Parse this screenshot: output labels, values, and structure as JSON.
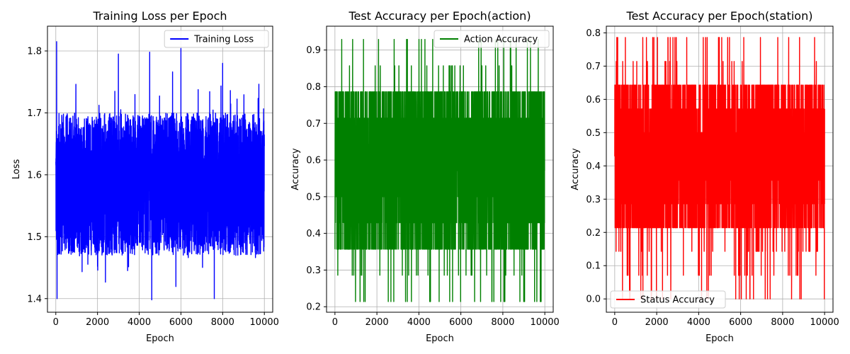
{
  "chart_data": [
    {
      "type": "line",
      "title": "Training Loss per Epoch",
      "xlabel": "Epoch",
      "ylabel": "Loss",
      "xlim": [
        -400,
        10400
      ],
      "ylim": [
        1.378,
        1.84
      ],
      "xticks": [
        0,
        2000,
        4000,
        6000,
        8000,
        10000
      ],
      "yticks": [
        1.4,
        1.5,
        1.6,
        1.7,
        1.8
      ],
      "grid": true,
      "legend_position": "top-right",
      "series": [
        {
          "name": "Training Loss",
          "color": "#0000ff",
          "epochs": [
            0,
            10000
          ],
          "band": [
            1.47,
            1.7
          ],
          "extremes": [
            [
              40,
              1.815
            ],
            [
              60,
              1.4
            ],
            [
              6000,
              1.804
            ],
            [
              4600,
              1.398
            ],
            [
              7600,
              1.4
            ],
            [
              3000,
              1.795
            ],
            [
              4500,
              1.798
            ],
            [
              8000,
              1.78
            ]
          ]
        }
      ]
    },
    {
      "type": "line",
      "title": "Test Accuracy per Epoch(action)",
      "xlabel": "Epoch",
      "ylabel": "Accuracy",
      "xlim": [
        -400,
        10400
      ],
      "ylim": [
        0.185,
        0.965
      ],
      "xticks": [
        0,
        2000,
        4000,
        6000,
        8000,
        10000
      ],
      "yticks": [
        0.2,
        0.3,
        0.4,
        0.5,
        0.6,
        0.7,
        0.8,
        0.9
      ],
      "grid": true,
      "legend_position": "top-right",
      "series": [
        {
          "name": "Action Accuracy",
          "color": "#008000",
          "epochs": [
            0,
            10000
          ],
          "levels": [
            0.214,
            0.286,
            0.357,
            0.429,
            0.5,
            0.571,
            0.643,
            0.714,
            0.786,
            0.857,
            0.929
          ],
          "band": [
            0.357,
            0.786
          ]
        }
      ]
    },
    {
      "type": "line",
      "title": "Test Accuracy per Epoch(station)",
      "xlabel": "Epoch",
      "ylabel": "Accuracy",
      "xlim": [
        -400,
        10400
      ],
      "ylim": [
        -0.04,
        0.82
      ],
      "xticks": [
        0,
        2000,
        4000,
        6000,
        8000,
        10000
      ],
      "yticks": [
        0.0,
        0.1,
        0.2,
        0.3,
        0.4,
        0.5,
        0.6,
        0.7,
        0.8
      ],
      "grid": true,
      "legend_position": "bottom-left",
      "series": [
        {
          "name": "Status Accuracy",
          "color": "#ff0000",
          "epochs": [
            0,
            10000
          ],
          "levels": [
            0.0,
            0.071,
            0.143,
            0.214,
            0.286,
            0.357,
            0.429,
            0.5,
            0.571,
            0.643,
            0.714,
            0.786
          ],
          "band": [
            0.214,
            0.643
          ]
        }
      ]
    }
  ]
}
